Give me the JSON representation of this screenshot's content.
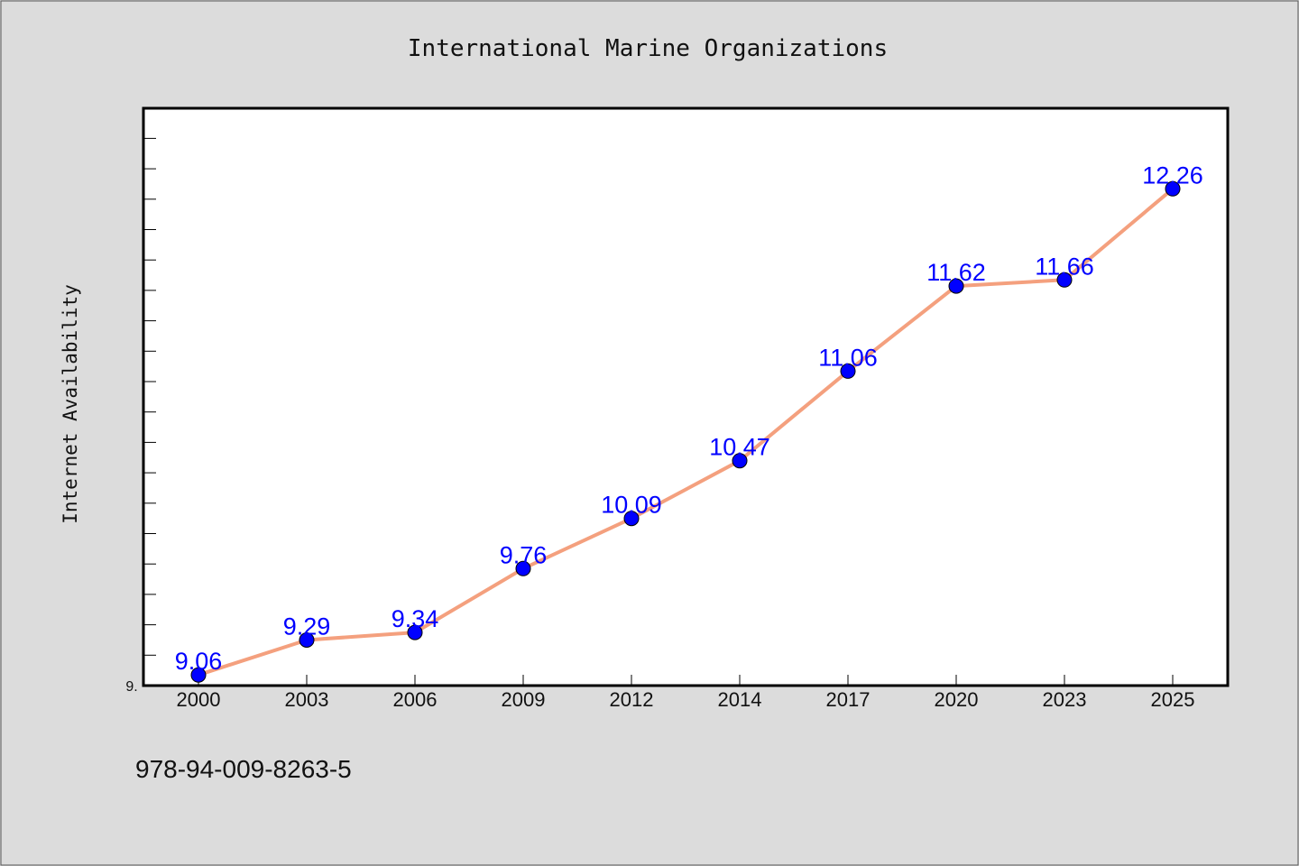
{
  "chart_data": {
    "type": "line",
    "title": "International Marine Organizations",
    "xlabel": "",
    "ylabel": "Internet Availability",
    "categories": [
      "2000",
      "2003",
      "2006",
      "2009",
      "2012",
      "2014",
      "2017",
      "2020",
      "2023",
      "2025"
    ],
    "values": [
      9.06,
      9.29,
      9.34,
      9.76,
      10.09,
      10.47,
      11.06,
      11.62,
      11.66,
      12.26
    ],
    "data_labels": [
      "9.06",
      "9.29",
      "9.34",
      "9.76",
      "10.09",
      "10.47",
      "11.06",
      "11.62",
      "11.66",
      "12.26"
    ],
    "ylim": [
      8.99,
      12.79
    ],
    "y_tick_label": "9.",
    "grid": false,
    "legend": "none",
    "line_color": "#f4a07e",
    "marker_color": "#0000ff",
    "label_color": "#0000ff"
  },
  "footer": {
    "isbn": "978-94-009-8263-5"
  }
}
